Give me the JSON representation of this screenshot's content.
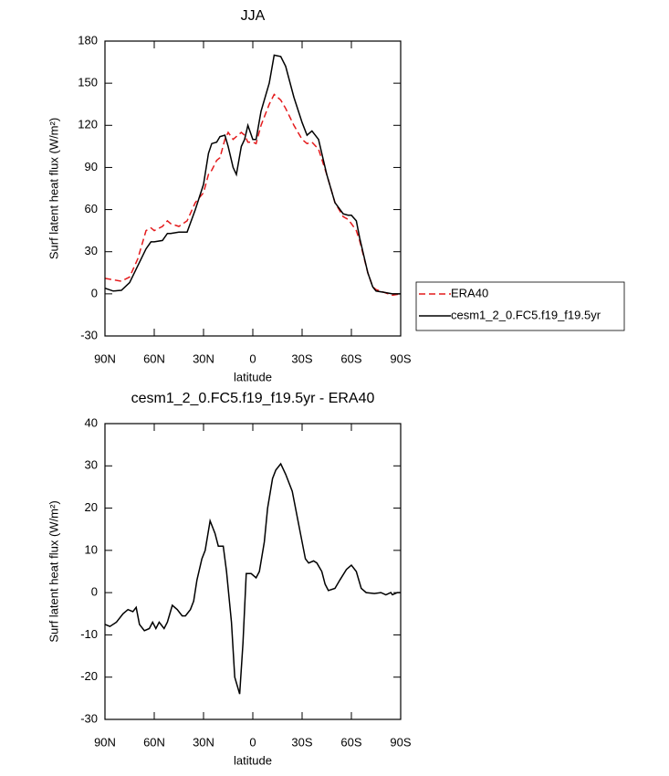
{
  "chart_data": [
    {
      "type": "line",
      "title": "JJA",
      "xlabel": "latitude",
      "ylabel": "Surf latent heat flux (W/m²)",
      "x": [
        90,
        85,
        80,
        75,
        70,
        65,
        62,
        60,
        55,
        52,
        50,
        45,
        40,
        35,
        30,
        27,
        25,
        22,
        20,
        17,
        15,
        12,
        10,
        7,
        5,
        3,
        0,
        -2,
        -5,
        -10,
        -13,
        -17,
        -20,
        -25,
        -30,
        -33,
        -36,
        -40,
        -45,
        -50,
        -55,
        -58,
        -60,
        -63,
        -65,
        -70,
        -73,
        -75,
        -80,
        -85,
        -90
      ],
      "series": [
        {
          "name": "ERA40",
          "color": "#e41a1c",
          "line_style": "dashed",
          "values": [
            11,
            10,
            9,
            12,
            25,
            45,
            47,
            45,
            48,
            52,
            50,
            48,
            52,
            65,
            72,
            85,
            88,
            95,
            97,
            110,
            115,
            110,
            112,
            115,
            113,
            108,
            108,
            107,
            120,
            135,
            142,
            138,
            132,
            120,
            110,
            107,
            108,
            103,
            85,
            65,
            55,
            53,
            50,
            45,
            38,
            15,
            5,
            3,
            1,
            -1,
            0
          ]
        },
        {
          "name": "cesm1_2_0.FC5.f19_f19.5yr",
          "color": "#000000",
          "line_style": "solid",
          "values": [
            4,
            2,
            2.5,
            8,
            20,
            32,
            37,
            37,
            38,
            43,
            43,
            44,
            44,
            60,
            78,
            100,
            107,
            108,
            112,
            113,
            105,
            90,
            85,
            105,
            110,
            120,
            110,
            110,
            130,
            150,
            170,
            169,
            162,
            140,
            122,
            113,
            116,
            110,
            85,
            65,
            57,
            56,
            56,
            52,
            40,
            15,
            5,
            2,
            1,
            0,
            0
          ]
        }
      ],
      "xlim": [
        90,
        -90
      ],
      "xticks": [
        {
          "value": 90,
          "label": "90N"
        },
        {
          "value": 60,
          "label": "60N"
        },
        {
          "value": 30,
          "label": "30N"
        },
        0,
        {
          "value": -30,
          "label": "30S"
        },
        {
          "value": -60,
          "label": "60S"
        },
        {
          "value": -90,
          "label": "90S"
        }
      ],
      "ylim": [
        -30,
        180
      ],
      "yticks": [
        -30,
        0,
        30,
        60,
        90,
        120,
        150,
        180
      ],
      "legend_position": "right"
    },
    {
      "type": "line",
      "title": "cesm1_2_0.FC5.f19_f19.5yr - ERA40",
      "xlabel": "latitude",
      "ylabel": "Surf latent heat flux (W/m²)",
      "x": [
        90,
        87,
        83,
        79,
        76,
        73,
        71,
        69,
        66,
        63,
        61,
        59,
        57,
        54,
        52,
        49,
        46,
        43,
        41,
        38,
        36,
        34,
        31,
        29,
        26,
        23,
        21,
        18,
        16,
        13,
        11,
        8,
        6,
        4,
        1,
        -2,
        -4,
        -7,
        -9,
        -12,
        -14,
        -17,
        -20,
        -24,
        -28,
        -32,
        -34,
        -37,
        -39,
        -42,
        -44,
        -46,
        -50,
        -53,
        -57,
        -60,
        -63,
        -66,
        -69,
        -74,
        -78,
        -81,
        -84,
        -85,
        -88,
        -90
      ],
      "color": "#000000",
      "values": [
        -7.5,
        -8,
        -7,
        -5,
        -4,
        -4.5,
        -3.5,
        -7.5,
        -9,
        -8.5,
        -7,
        -8.5,
        -7,
        -8.5,
        -7,
        -3,
        -4,
        -5.5,
        -5.5,
        -4,
        -2,
        3,
        8,
        10,
        17,
        14,
        11,
        11,
        5,
        -7,
        -20,
        -24,
        -12,
        4.5,
        4.5,
        3.5,
        5,
        12,
        20,
        27,
        29,
        30.5,
        28,
        24,
        16,
        8,
        7,
        7.5,
        7,
        5,
        2,
        0.5,
        1,
        3,
        5.5,
        6.5,
        5,
        1,
        0,
        -0.2,
        0,
        -0.5,
        0,
        -0.5,
        0,
        0
      ],
      "xlim": [
        90,
        -90
      ],
      "xticks": [
        {
          "value": 90,
          "label": "90N"
        },
        {
          "value": 60,
          "label": "60N"
        },
        {
          "value": 30,
          "label": "30N"
        },
        0,
        {
          "value": -30,
          "label": "30S"
        },
        {
          "value": -60,
          "label": "60S"
        },
        {
          "value": -90,
          "label": "90S"
        }
      ],
      "ylim": [
        -30,
        40
      ],
      "yticks": [
        -30,
        -20,
        -10,
        0,
        10,
        20,
        30,
        40
      ]
    }
  ]
}
